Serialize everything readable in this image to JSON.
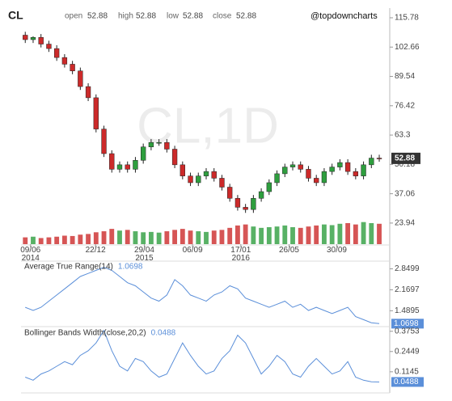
{
  "chart_data": [
    {
      "type": "candlestick",
      "title": "CL",
      "watermark": "CL,1D",
      "annotation": "@topdowncharts",
      "ohlc_header": [
        {
          "label": "open",
          "value": 52.88
        },
        {
          "label": "high",
          "value": 52.88
        },
        {
          "label": "low",
          "value": 52.88
        },
        {
          "label": "close",
          "value": 52.88
        }
      ],
      "x": [
        5,
        20,
        35,
        50,
        65,
        80,
        95,
        110,
        125,
        140,
        155,
        170,
        185,
        200,
        215,
        230,
        245,
        260,
        275,
        290,
        305,
        320,
        335,
        350,
        365,
        380,
        395,
        410,
        425,
        440,
        455,
        470,
        485,
        500,
        515,
        530,
        545,
        560,
        575,
        590,
        605,
        620,
        635,
        650,
        665,
        680
      ],
      "open": [
        108,
        106,
        107,
        104,
        102,
        98,
        95,
        92,
        85,
        80,
        66,
        55,
        48,
        50,
        48,
        52,
        58,
        60,
        60,
        57,
        50,
        45,
        42,
        45,
        47,
        44,
        40,
        35,
        31,
        30,
        35,
        38,
        42,
        46,
        49,
        50,
        48,
        44,
        42,
        47,
        49,
        51,
        47,
        45,
        50,
        53
      ],
      "high": [
        109.5,
        107.5,
        108.5,
        105.5,
        103.5,
        99.5,
        96.5,
        93.5,
        86.5,
        81.5,
        67.5,
        56.5,
        51.5,
        51.5,
        53.5,
        59.5,
        61.5,
        61.5,
        61.5,
        58.5,
        51.5,
        46.5,
        46.5,
        48.5,
        48.5,
        45.5,
        41.5,
        36.5,
        32.5,
        36.5,
        39.5,
        43.5,
        47.5,
        50.5,
        51.5,
        51.5,
        49.5,
        45.5,
        48.5,
        50.5,
        52.5,
        52.5,
        48.5,
        51.5,
        54.5,
        54.5
      ],
      "low": [
        104.5,
        104.5,
        102.5,
        100.5,
        96.5,
        93.5,
        90.5,
        83.5,
        78.5,
        64.5,
        53.5,
        46.5,
        46.5,
        46.5,
        46.5,
        50.5,
        56.5,
        58.5,
        55.5,
        48.5,
        43.5,
        40.5,
        40.5,
        43.5,
        42.5,
        38.5,
        33.5,
        29.5,
        28.5,
        28.5,
        33.5,
        36.5,
        40.5,
        44.5,
        47.5,
        46.5,
        42.5,
        40.5,
        40.5,
        45.5,
        47.5,
        45.5,
        43.5,
        43.5,
        48.5,
        51.38
      ],
      "close": [
        106,
        107,
        104,
        102,
        98,
        95,
        92,
        85,
        80,
        66,
        55,
        48,
        50,
        48,
        52,
        58,
        60,
        60,
        57,
        50,
        45,
        42,
        45,
        47,
        44,
        40,
        35,
        31,
        30,
        35,
        38,
        42,
        46,
        49,
        50,
        48,
        44,
        42,
        47,
        49,
        51,
        47,
        45,
        50,
        53,
        52.88
      ],
      "volume": [
        20,
        22,
        18,
        20,
        22,
        25,
        24,
        28,
        30,
        35,
        38,
        45,
        40,
        42,
        38,
        35,
        36,
        34,
        38,
        42,
        45,
        40,
        38,
        36,
        40,
        42,
        48,
        55,
        58,
        52,
        48,
        50,
        52,
        55,
        50,
        48,
        52,
        55,
        58,
        56,
        60,
        62,
        58,
        65,
        62,
        60
      ],
      "volume_ylim": [
        0,
        100
      ],
      "up_color": "#2e9e3e",
      "down_color": "#cc2a2a",
      "xlim": [
        0,
        700
      ],
      "xticks": [
        {
          "value": 15,
          "label": "09/06\n2014"
        },
        {
          "value": 139,
          "label": "22/12"
        },
        {
          "value": 232,
          "label": "29/04\n2015"
        },
        {
          "value": 324,
          "label": "06/09"
        },
        {
          "value": 416,
          "label": "17/01\n2016"
        },
        {
          "value": 508,
          "label": "26/05"
        },
        {
          "value": 599,
          "label": "30/09"
        }
      ],
      "ylim": [
        14.5,
        118.3
      ],
      "yticks": [
        23.94,
        37.06,
        50.18,
        63.3,
        76.42,
        89.54,
        102.66,
        115.78
      ]
    },
    {
      "type": "line",
      "title": "Average True Range(14)",
      "current_value": 1.0698,
      "color": "#5b8fd9",
      "x": [
        5,
        20,
        35,
        50,
        65,
        80,
        95,
        110,
        125,
        140,
        155,
        170,
        185,
        200,
        215,
        230,
        245,
        260,
        275,
        290,
        305,
        320,
        335,
        350,
        365,
        380,
        395,
        410,
        425,
        440,
        455,
        470,
        485,
        500,
        515,
        530,
        545,
        560,
        575,
        590,
        605,
        620,
        635,
        650,
        665,
        680
      ],
      "values": [
        1.6,
        1.5,
        1.6,
        1.8,
        2.0,
        2.2,
        2.4,
        2.6,
        2.7,
        2.8,
        2.9,
        2.8,
        2.6,
        2.4,
        2.3,
        2.1,
        1.9,
        1.8,
        2.0,
        2.5,
        2.3,
        2.0,
        1.9,
        1.8,
        2.0,
        2.1,
        2.3,
        2.2,
        1.9,
        1.8,
        1.7,
        1.6,
        1.7,
        1.8,
        1.6,
        1.7,
        1.5,
        1.6,
        1.5,
        1.4,
        1.5,
        1.6,
        1.3,
        1.2,
        1.1,
        1.0698
      ],
      "xlim": [
        0,
        700
      ],
      "ylim": [
        1.0,
        3.1
      ],
      "yticks": [
        1.4895,
        2.1697,
        2.8499
      ]
    },
    {
      "type": "line",
      "title": "Bollinger Bands Width(close,20,2)",
      "current_value": 0.0488,
      "color": "#5b8fd9",
      "x": [
        5,
        20,
        35,
        50,
        65,
        80,
        95,
        110,
        125,
        140,
        155,
        170,
        185,
        200,
        215,
        230,
        245,
        260,
        275,
        290,
        305,
        320,
        335,
        350,
        365,
        380,
        395,
        410,
        425,
        440,
        455,
        470,
        485,
        500,
        515,
        530,
        545,
        560,
        575,
        590,
        605,
        620,
        635,
        650,
        665,
        680
      ],
      "values": [
        0.08,
        0.06,
        0.1,
        0.12,
        0.15,
        0.18,
        0.16,
        0.22,
        0.25,
        0.3,
        0.38,
        0.25,
        0.15,
        0.12,
        0.2,
        0.18,
        0.12,
        0.08,
        0.1,
        0.2,
        0.3,
        0.22,
        0.15,
        0.1,
        0.12,
        0.2,
        0.25,
        0.35,
        0.3,
        0.2,
        0.1,
        0.15,
        0.22,
        0.18,
        0.1,
        0.08,
        0.15,
        0.2,
        0.15,
        0.1,
        0.12,
        0.18,
        0.08,
        0.06,
        0.05,
        0.0488
      ],
      "xlim": [
        0,
        700
      ],
      "ylim": [
        0.02,
        0.4
      ],
      "yticks": [
        0.1145,
        0.2449,
        0.3753
      ]
    }
  ]
}
